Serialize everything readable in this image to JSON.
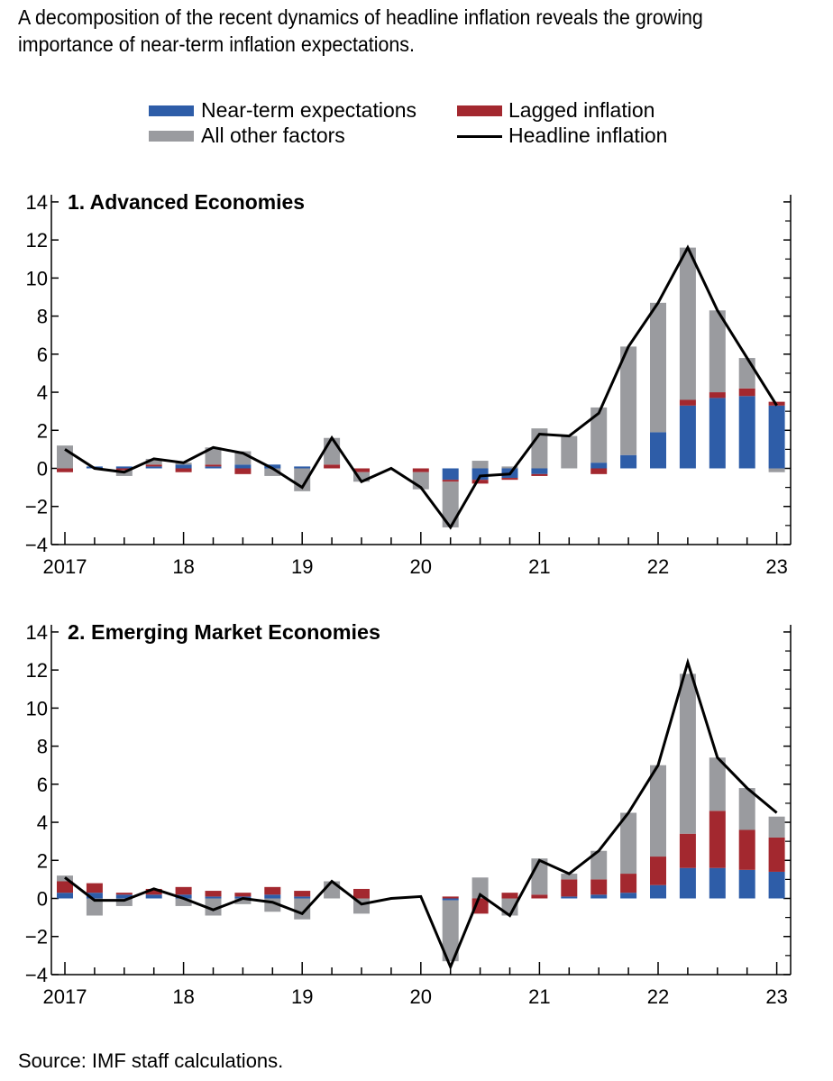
{
  "title": "A decomposition of the recent dynamics of headline inflation reveals the growing importance of near-term inflation expectations.",
  "legend": {
    "near_term": "Near-term expectations",
    "lagged": "Lagged inflation",
    "other": "All other factors",
    "headline": "Headline inflation"
  },
  "colors": {
    "near_term": "#2e5da8",
    "lagged": "#a3282f",
    "other": "#9a9b9f",
    "headline": "#000000"
  },
  "source": "Source: IMF staff calculations.",
  "chart_data": [
    {
      "type": "bar",
      "stacked": true,
      "title": "1. Advanced Economies",
      "ylim": [
        -4,
        14
      ],
      "yticks": [
        "14",
        "12",
        "10",
        "8",
        "6",
        "4",
        "2",
        "0",
        "−2",
        "−4"
      ],
      "xticks": [
        "2017",
        "18",
        "19",
        "20",
        "21",
        "22",
        "23"
      ],
      "categories": [
        "2017Q1",
        "2017Q2",
        "2017Q3",
        "2017Q4",
        "2018Q1",
        "2018Q2",
        "2018Q3",
        "2018Q4",
        "2019Q1",
        "2019Q2",
        "2019Q3",
        "2019Q4",
        "2020Q1",
        "2020Q2",
        "2020Q3",
        "2020Q4",
        "2021Q1",
        "2021Q2",
        "2021Q3",
        "2021Q4",
        "2022Q1",
        "2022Q2",
        "2022Q3",
        "2022Q4",
        "2023Q1"
      ],
      "series": [
        {
          "name": "Near-term expectations",
          "values": [
            0.0,
            0.1,
            0.1,
            0.1,
            0.2,
            0.1,
            0.2,
            0.2,
            0.1,
            0.0,
            0.0,
            0.0,
            0.0,
            -0.6,
            -0.6,
            -0.5,
            -0.3,
            0.0,
            0.3,
            0.7,
            1.9,
            3.3,
            3.7,
            3.8,
            3.3
          ]
        },
        {
          "name": "Lagged inflation",
          "values": [
            -0.2,
            0.0,
            -0.1,
            0.1,
            -0.2,
            0.1,
            -0.3,
            0.0,
            0.0,
            0.2,
            -0.2,
            0.0,
            -0.2,
            -0.1,
            -0.2,
            -0.1,
            -0.1,
            0.0,
            -0.3,
            0.0,
            0.0,
            0.3,
            0.3,
            0.4,
            0.2
          ]
        },
        {
          "name": "All other factors",
          "values": [
            1.2,
            0.0,
            -0.3,
            0.3,
            0.1,
            0.9,
            0.7,
            -0.4,
            -1.2,
            1.4,
            -0.5,
            0.0,
            -0.9,
            -2.4,
            0.4,
            0.1,
            2.1,
            1.7,
            2.9,
            5.7,
            6.8,
            8.0,
            4.3,
            1.6,
            -0.2
          ]
        }
      ],
      "headline": [
        1.0,
        0.0,
        -0.2,
        0.5,
        0.3,
        1.1,
        0.8,
        0.0,
        -1.0,
        1.6,
        -0.7,
        0.0,
        -1.0,
        -3.1,
        -0.4,
        -0.3,
        1.8,
        1.7,
        2.9,
        6.4,
        8.7,
        11.6,
        8.3,
        5.8,
        3.3
      ]
    },
    {
      "type": "bar",
      "stacked": true,
      "title": "2. Emerging Market Economies",
      "ylim": [
        -4,
        14
      ],
      "yticks": [
        "14",
        "12",
        "10",
        "8",
        "6",
        "4",
        "2",
        "0",
        "−2",
        "−4"
      ],
      "xticks": [
        "2017",
        "18",
        "19",
        "20",
        "21",
        "22",
        "23"
      ],
      "categories": [
        "2017Q1",
        "2017Q2",
        "2017Q3",
        "2017Q4",
        "2018Q1",
        "2018Q2",
        "2018Q3",
        "2018Q4",
        "2019Q1",
        "2019Q2",
        "2019Q3",
        "2019Q4",
        "2020Q1",
        "2020Q2",
        "2020Q3",
        "2020Q4",
        "2021Q1",
        "2021Q2",
        "2021Q3",
        "2021Q4",
        "2022Q1",
        "2022Q2",
        "2022Q3",
        "2022Q4",
        "2023Q1"
      ],
      "series": [
        {
          "name": "Near-term expectations",
          "values": [
            0.3,
            0.3,
            0.2,
            0.2,
            0.2,
            0.1,
            0.1,
            0.2,
            0.1,
            0.0,
            0.0,
            0.0,
            0.0,
            -0.1,
            0.0,
            0.0,
            0.0,
            0.1,
            0.2,
            0.3,
            0.7,
            1.6,
            1.6,
            1.5,
            1.4
          ]
        },
        {
          "name": "Lagged inflation",
          "values": [
            0.6,
            0.5,
            0.1,
            0.3,
            0.4,
            0.3,
            0.2,
            0.4,
            0.3,
            0.0,
            0.5,
            0.0,
            0.0,
            0.1,
            -0.8,
            0.3,
            0.2,
            0.9,
            0.8,
            1.0,
            1.5,
            1.8,
            3.0,
            2.1,
            1.8
          ]
        },
        {
          "name": "All other factors",
          "values": [
            0.3,
            -0.9,
            -0.4,
            0.0,
            -0.4,
            -0.9,
            -0.3,
            -0.7,
            -1.1,
            0.9,
            -0.8,
            0.0,
            0.0,
            -3.2,
            1.1,
            -0.9,
            1.9,
            0.3,
            1.5,
            3.2,
            4.8,
            8.4,
            2.8,
            2.2,
            1.1
          ]
        }
      ],
      "headline": [
        1.1,
        -0.1,
        -0.1,
        0.5,
        0.0,
        -0.6,
        0.0,
        -0.2,
        -0.8,
        0.9,
        -0.3,
        0.0,
        0.1,
        -3.6,
        0.2,
        -0.9,
        2.0,
        1.3,
        2.5,
        4.5,
        7.0,
        12.4,
        7.4,
        5.8,
        4.5
      ]
    }
  ]
}
